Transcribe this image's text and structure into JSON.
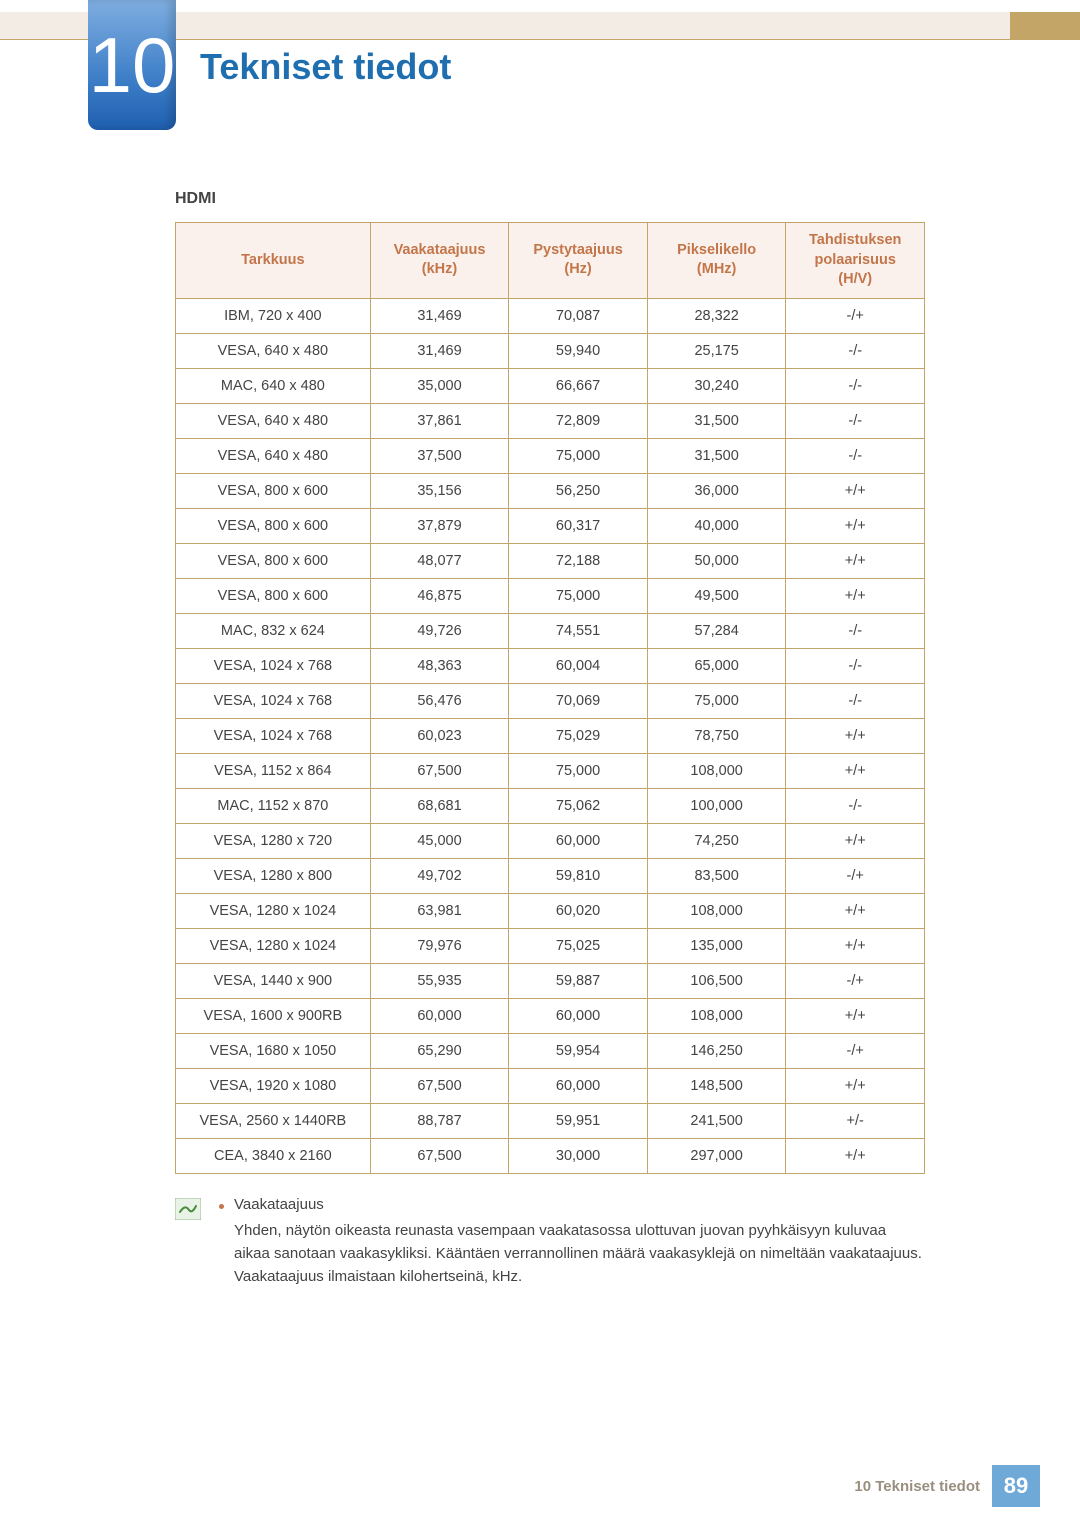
{
  "chapter_number": "10",
  "page_title": "Tekniset tiedot",
  "section_label": "HDMI",
  "table": {
    "type": "table",
    "header_bg": "#faf1ec",
    "header_text_color": "#c3764a",
    "border_color": "#c3a667",
    "cell_text_color": "#444444",
    "columns": [
      "Tarkkuus",
      "Vaakataajuus (kHz)",
      "Pystytaajuus (Hz)",
      "Pikselikello (MHz)",
      "Tahdistuksen polaarisuus (H/V)"
    ],
    "rows": [
      [
        "IBM, 720 x 400",
        "31,469",
        "70,087",
        "28,322",
        "-/+"
      ],
      [
        "VESA, 640 x 480",
        "31,469",
        "59,940",
        "25,175",
        "-/-"
      ],
      [
        "MAC, 640 x 480",
        "35,000",
        "66,667",
        "30,240",
        "-/-"
      ],
      [
        "VESA, 640 x 480",
        "37,861",
        "72,809",
        "31,500",
        "-/-"
      ],
      [
        "VESA, 640 x 480",
        "37,500",
        "75,000",
        "31,500",
        "-/-"
      ],
      [
        "VESA, 800 x 600",
        "35,156",
        "56,250",
        "36,000",
        "+/+"
      ],
      [
        "VESA, 800 x 600",
        "37,879",
        "60,317",
        "40,000",
        "+/+"
      ],
      [
        "VESA, 800 x 600",
        "48,077",
        "72,188",
        "50,000",
        "+/+"
      ],
      [
        "VESA, 800 x 600",
        "46,875",
        "75,000",
        "49,500",
        "+/+"
      ],
      [
        "MAC, 832 x 624",
        "49,726",
        "74,551",
        "57,284",
        "-/-"
      ],
      [
        "VESA, 1024 x 768",
        "48,363",
        "60,004",
        "65,000",
        "-/-"
      ],
      [
        "VESA, 1024 x 768",
        "56,476",
        "70,069",
        "75,000",
        "-/-"
      ],
      [
        "VESA, 1024 x 768",
        "60,023",
        "75,029",
        "78,750",
        "+/+"
      ],
      [
        "VESA, 1152 x 864",
        "67,500",
        "75,000",
        "108,000",
        "+/+"
      ],
      [
        "MAC, 1152 x 870",
        "68,681",
        "75,062",
        "100,000",
        "-/-"
      ],
      [
        "VESA, 1280 x 720",
        "45,000",
        "60,000",
        "74,250",
        "+/+"
      ],
      [
        "VESA, 1280 x 800",
        "49,702",
        "59,810",
        "83,500",
        "-/+"
      ],
      [
        "VESA, 1280 x 1024",
        "63,981",
        "60,020",
        "108,000",
        "+/+"
      ],
      [
        "VESA, 1280 x 1024",
        "79,976",
        "75,025",
        "135,000",
        "+/+"
      ],
      [
        "VESA, 1440 x 900",
        "55,935",
        "59,887",
        "106,500",
        "-/+"
      ],
      [
        "VESA, 1600 x 900RB",
        "60,000",
        "60,000",
        "108,000",
        "+/+"
      ],
      [
        "VESA, 1680 x 1050",
        "65,290",
        "59,954",
        "146,250",
        "-/+"
      ],
      [
        "VESA, 1920 x 1080",
        "67,500",
        "60,000",
        "148,500",
        "+/+"
      ],
      [
        "VESA, 2560 x 1440RB",
        "88,787",
        "59,951",
        "241,500",
        "+/-"
      ],
      [
        "CEA, 3840 x 2160",
        "67,500",
        "30,000",
        "297,000",
        "+/+"
      ]
    ]
  },
  "note": {
    "term": "Vaakataajuus",
    "body": "Yhden, näytön oikeasta reunasta vasempaan vaakatasossa ulottuvan juovan pyyhkäisyyn kuluvaa aikaa sanotaan vaakasykliksi. Kääntäen verrannollinen määrä vaakasyklejä on nimeltään vaakataajuus. Vaakataajuus ilmaistaan kilohertseinä, kHz."
  },
  "footer": {
    "text": "10 Tekniset tiedot",
    "page_number": "89"
  },
  "colors": {
    "title_color": "#1f6fb0",
    "badge_gradient_top": "#7faee0",
    "badge_gradient_bottom": "#1f5fb0",
    "top_band_bg": "#f2ece4",
    "top_band_accent": "#c3a667",
    "footer_badge_bg": "#6fa9d8",
    "footer_text_color": "#9a8f7f",
    "bullet_color": "#c3764a"
  }
}
